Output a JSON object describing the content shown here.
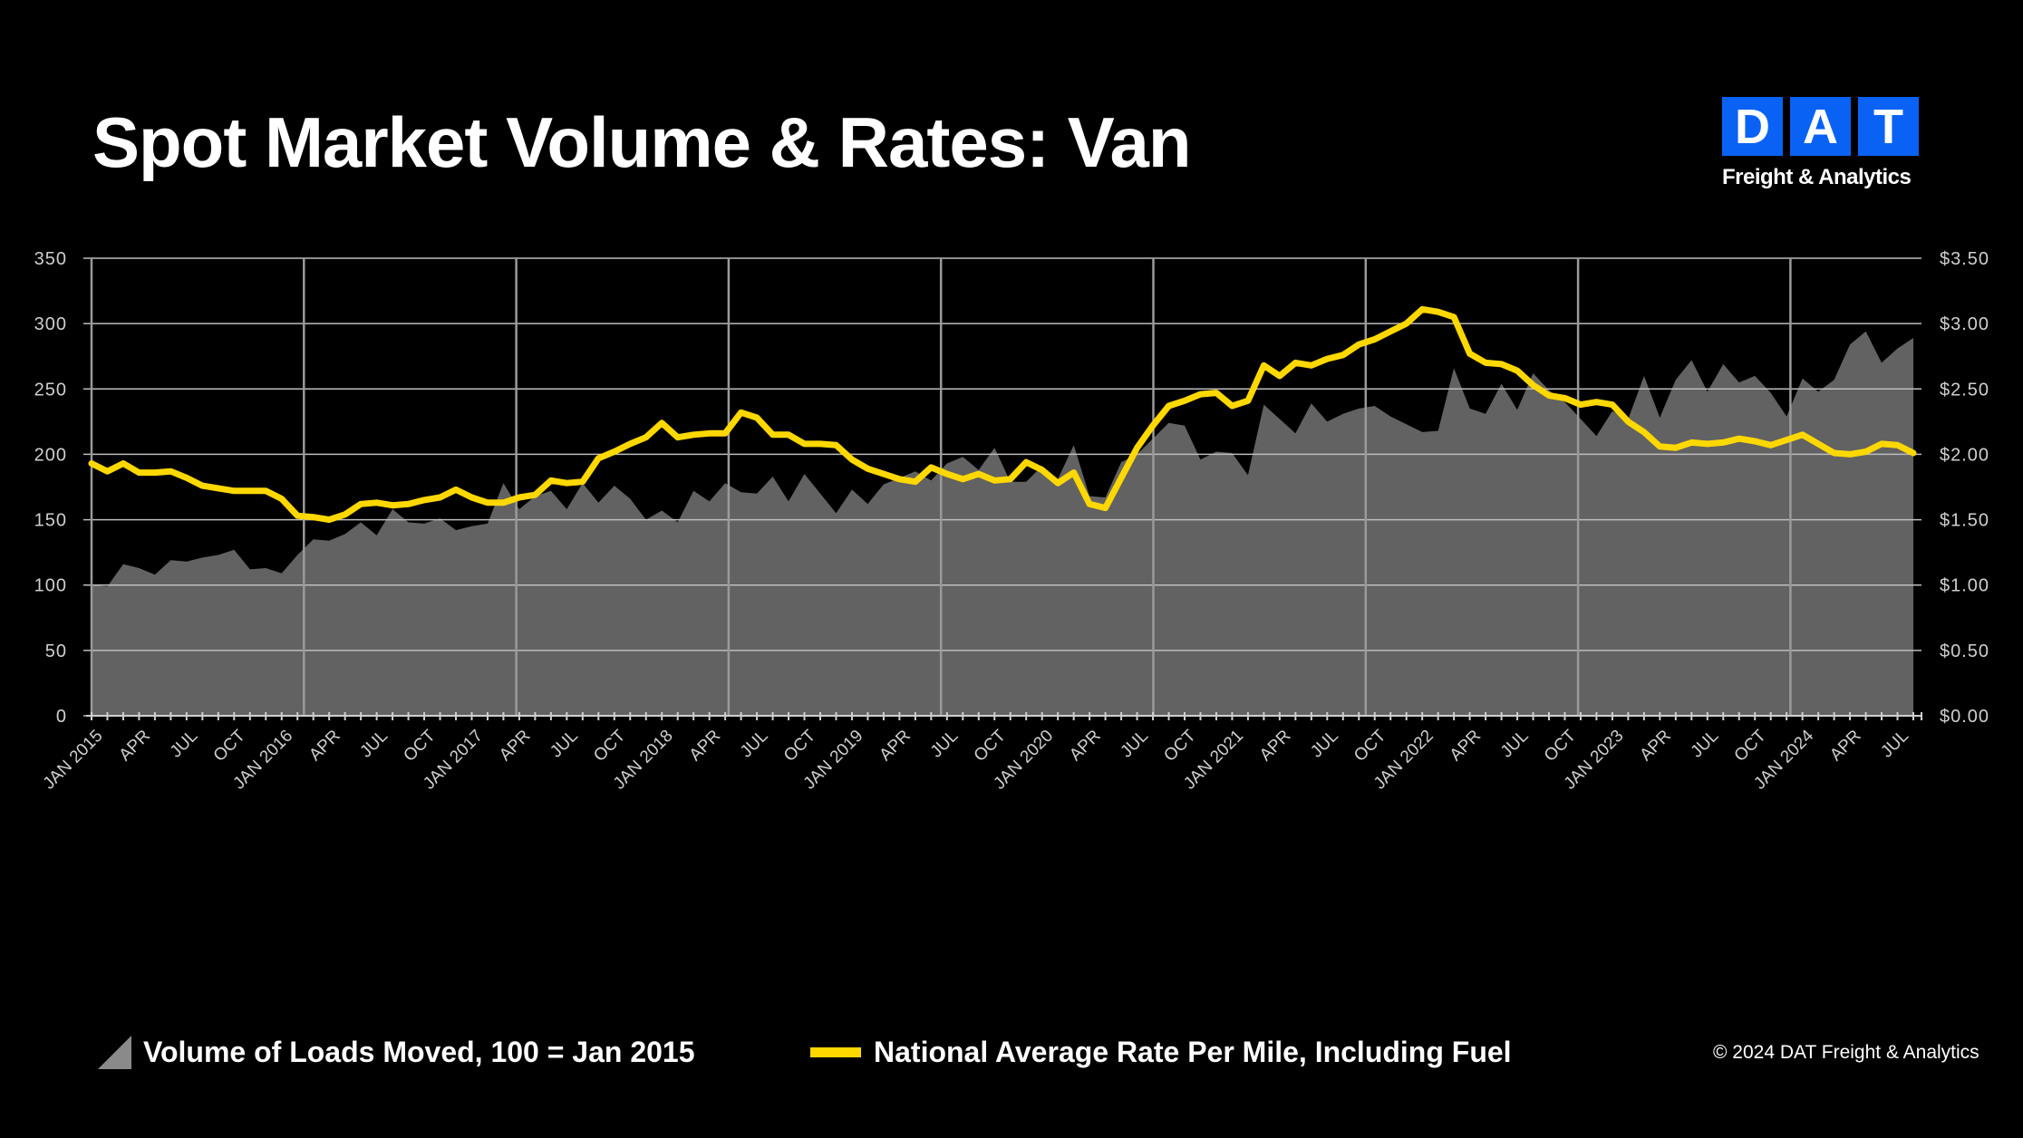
{
  "header": {
    "title": "Spot Market Volume & Rates: Van"
  },
  "logo": {
    "letters": [
      "D",
      "A",
      "T"
    ],
    "subtitle": "Freight & Analytics",
    "color": "#0a62f5"
  },
  "legend": {
    "volume_label": "Volume of Loads Moved, 100 = Jan 2015",
    "rate_label": "National Average Rate Per Mile, Including Fuel"
  },
  "footer": {
    "copyright": "© 2024 DAT Freight & Analytics"
  },
  "chart_data": {
    "type": "area+line",
    "x_start": "JAN 2015",
    "x_end": "AUG 2024",
    "frequency": "monthly",
    "x_tick_labels": [
      "JAN 2015",
      "APR",
      "JUL",
      "OCT",
      "JAN 2016",
      "APR",
      "JUL",
      "OCT",
      "JAN 2017",
      "APR",
      "JUL",
      "OCT",
      "JAN 2018",
      "APR",
      "JUL",
      "OCT",
      "JAN 2019",
      "APR",
      "JUL",
      "OCT",
      "JAN 2020",
      "APR",
      "JUL",
      "OCT",
      "JAN 2021",
      "APR",
      "JUL",
      "OCT",
      "JAN 2022",
      "APR",
      "JUL",
      "OCT",
      "JAN 2023",
      "APR",
      "JUL",
      "OCT",
      "JAN 2024",
      "APR",
      "JUL"
    ],
    "y_left": {
      "ylim": [
        0,
        350
      ],
      "ticks": [
        "0",
        "50",
        "100",
        "150",
        "200",
        "250",
        "300",
        "350"
      ]
    },
    "y_right": {
      "ylim": [
        0,
        3.5
      ],
      "ticks": [
        "$0.00",
        "$0.50",
        "$1.00",
        "$1.50",
        "$2.00",
        "$2.50",
        "$3.00",
        "$3.50"
      ]
    },
    "grid": true,
    "legend_position": "bottom",
    "series": [
      {
        "name": "Volume of Loads Moved, 100 = Jan 2015",
        "type": "area",
        "axis": "left",
        "color": "#626262",
        "values": [
          100,
          99,
          116,
          113,
          108,
          119,
          118,
          121,
          123,
          127,
          112,
          113,
          109,
          123,
          135,
          134,
          139,
          148,
          138,
          158,
          148,
          147,
          151,
          142,
          145,
          147,
          178,
          158,
          168,
          172,
          158,
          178,
          163,
          176,
          166,
          150,
          157,
          148,
          172,
          164,
          178,
          171,
          170,
          183,
          164,
          185,
          170,
          155,
          173,
          162,
          177,
          182,
          187,
          180,
          193,
          198,
          188,
          205,
          179,
          179,
          191,
          181,
          207,
          168,
          167,
          194,
          200,
          212,
          224,
          222,
          196,
          202,
          201,
          184,
          238,
          227,
          216,
          239,
          225,
          231,
          235,
          237,
          229,
          223,
          217,
          218,
          266,
          235,
          231,
          254,
          234,
          262,
          249,
          240,
          227,
          214,
          233,
          227,
          260,
          228,
          257,
          272,
          248,
          269,
          255,
          260,
          247,
          229,
          258,
          248,
          257,
          284,
          294,
          270,
          281,
          289
        ]
      },
      {
        "name": "National Average Rate Per Mile, Including Fuel",
        "type": "line",
        "axis": "right",
        "color": "#ffd800",
        "values": [
          1.93,
          1.87,
          1.93,
          1.86,
          1.86,
          1.87,
          1.82,
          1.76,
          1.74,
          1.72,
          1.72,
          1.72,
          1.66,
          1.53,
          1.52,
          1.5,
          1.54,
          1.62,
          1.63,
          1.61,
          1.62,
          1.65,
          1.67,
          1.73,
          1.67,
          1.63,
          1.63,
          1.67,
          1.69,
          1.8,
          1.78,
          1.79,
          1.97,
          2.02,
          2.08,
          2.13,
          2.24,
          2.13,
          2.15,
          2.16,
          2.16,
          2.32,
          2.28,
          2.15,
          2.15,
          2.08,
          2.08,
          2.07,
          1.96,
          1.89,
          1.85,
          1.81,
          1.79,
          1.9,
          1.85,
          1.81,
          1.85,
          1.8,
          1.81,
          1.94,
          1.88,
          1.78,
          1.86,
          1.62,
          1.59,
          1.82,
          2.05,
          2.22,
          2.37,
          2.41,
          2.46,
          2.47,
          2.37,
          2.41,
          2.68,
          2.6,
          2.7,
          2.68,
          2.73,
          2.76,
          2.84,
          2.88,
          2.94,
          3.0,
          3.11,
          3.09,
          3.05,
          2.77,
          2.7,
          2.69,
          2.64,
          2.53,
          2.45,
          2.43,
          2.38,
          2.4,
          2.38,
          2.25,
          2.17,
          2.06,
          2.05,
          2.09,
          2.08,
          2.09,
          2.12,
          2.1,
          2.07,
          2.11,
          2.15,
          2.08,
          2.01,
          2.0,
          2.02,
          2.08,
          2.07,
          2.01
        ]
      }
    ]
  }
}
